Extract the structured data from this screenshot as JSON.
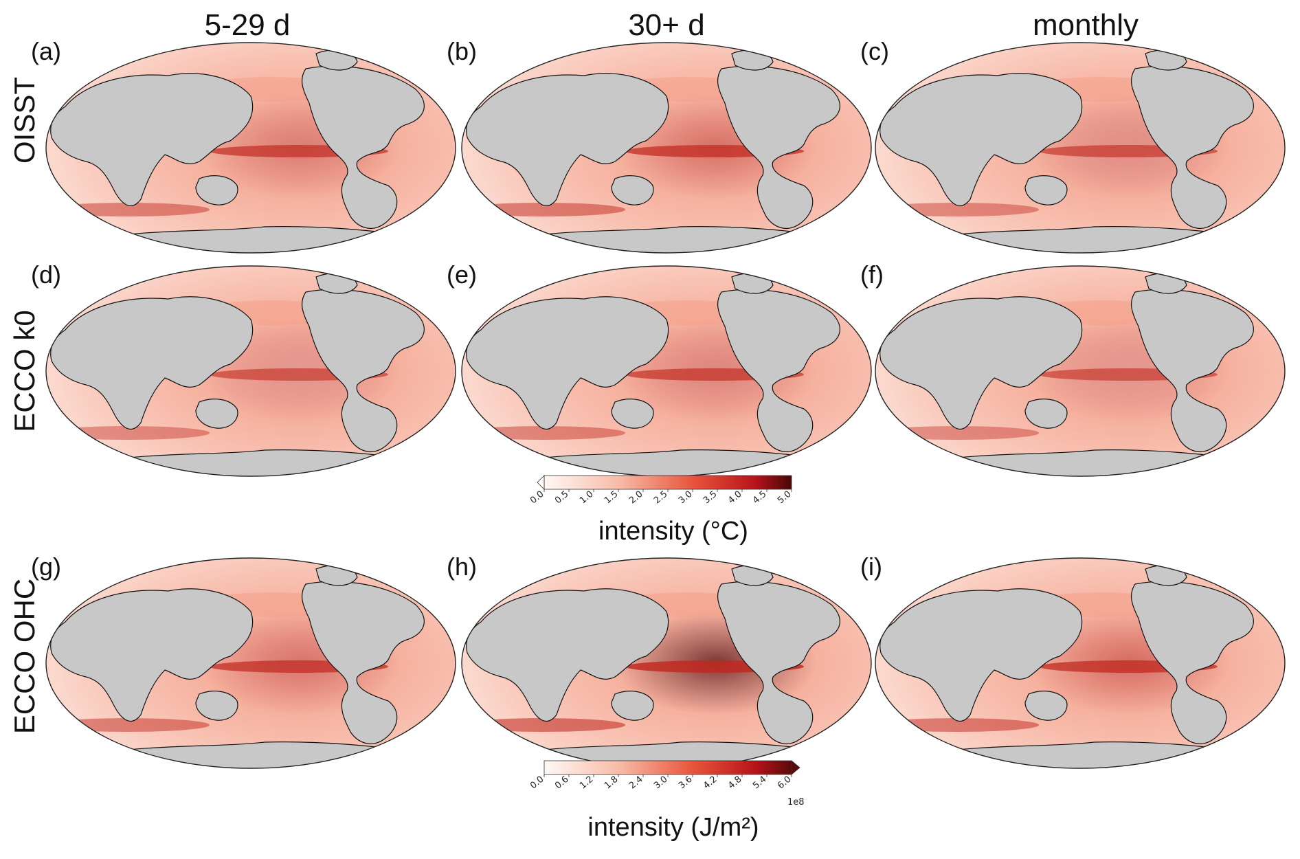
{
  "columns": [
    {
      "label": "5-29 d"
    },
    {
      "label": "30+ d"
    },
    {
      "label": "monthly"
    }
  ],
  "rows": [
    {
      "label": "OISST"
    },
    {
      "label": "ECCO k0"
    },
    {
      "label": "ECCO OHC"
    }
  ],
  "panels": [
    {
      "label": "(a)",
      "intensity_level": 0.55
    },
    {
      "label": "(b)",
      "intensity_level": 0.62
    },
    {
      "label": "(c)",
      "intensity_level": 0.45
    },
    {
      "label": "(d)",
      "intensity_level": 0.4
    },
    {
      "label": "(e)",
      "intensity_level": 0.5
    },
    {
      "label": "(f)",
      "intensity_level": 0.4
    },
    {
      "label": "(g)",
      "intensity_level": 0.6
    },
    {
      "label": "(h)",
      "intensity_level": 0.8
    },
    {
      "label": "(i)",
      "intensity_level": 0.65
    }
  ],
  "colorbar_sst": {
    "title": "intensity (°C)",
    "ticks": [
      "0.0",
      "0.5",
      "1.0",
      "1.5",
      "2.0",
      "2.5",
      "3.0",
      "3.5",
      "4.0",
      "4.5",
      "5.0"
    ],
    "extend": "min"
  },
  "colorbar_ohc": {
    "title": "intensity (J/m²)",
    "ticks": [
      "0.0",
      "0.6",
      "1.2",
      "1.8",
      "2.4",
      "3.0",
      "3.6",
      "4.2",
      "4.8",
      "5.4",
      "6.0"
    ],
    "exponent": "1e8",
    "extend": "max"
  },
  "colors": {
    "land": "#c8c8c8",
    "ocean_low": "#fde6de",
    "ocean_mid": "#f4a08a",
    "ocean_high": "#c0281f",
    "ocean_max": "#5a0a0a",
    "coast": "#111111"
  }
}
